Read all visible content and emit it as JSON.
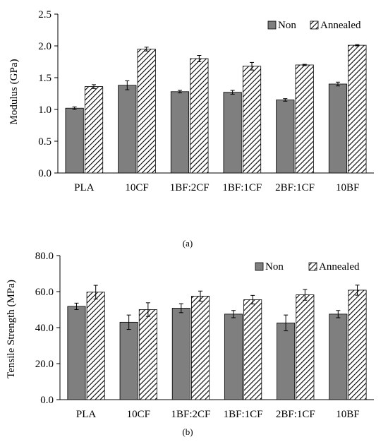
{
  "chart_data": [
    {
      "type": "bar",
      "panel_label": "(a)",
      "ylabel": "Modulus (GPa)",
      "xlabel": "",
      "ylim": [
        0,
        2.5
      ],
      "yticks": [
        "0.0",
        "0.5",
        "1.0",
        "1.5",
        "2.0",
        "2.5"
      ],
      "grid": false,
      "legend_position": "top-right",
      "categories": [
        "PLA",
        "10CF",
        "1BF:2CF",
        "1BF:1CF",
        "2BF:1CF",
        "10BF"
      ],
      "series": [
        {
          "name": "Non",
          "values": [
            1.02,
            1.38,
            1.28,
            1.27,
            1.15,
            1.4
          ],
          "errors": [
            0.02,
            0.07,
            0.02,
            0.03,
            0.02,
            0.03
          ],
          "color": "#7f7f7f",
          "pattern": "solid"
        },
        {
          "name": "Annealed",
          "values": [
            1.36,
            1.95,
            1.8,
            1.68,
            1.7,
            2.01
          ],
          "errors": [
            0.03,
            0.03,
            0.05,
            0.06,
            0.01,
            0.01
          ],
          "color": "#ffffff",
          "pattern": "hatched"
        }
      ]
    },
    {
      "type": "bar",
      "panel_label": "(b)",
      "ylabel": "Tensile Strength (MPa)",
      "xlabel": "",
      "ylim": [
        0,
        80
      ],
      "yticks": [
        "0.0",
        "20.0",
        "40.0",
        "60.0",
        "80.0"
      ],
      "grid": false,
      "legend_position": "top-right",
      "categories": [
        "PLA",
        "10CF",
        "1BF:2CF",
        "1BF:1CF",
        "2BF:1CF",
        "10BF"
      ],
      "series": [
        {
          "name": "Non",
          "values": [
            51.8,
            43.0,
            50.8,
            47.5,
            42.6,
            47.5
          ],
          "errors": [
            1.8,
            4.0,
            2.5,
            2.0,
            4.4,
            2.0
          ],
          "color": "#7f7f7f",
          "pattern": "solid"
        },
        {
          "name": "Annealed",
          "values": [
            59.7,
            50.0,
            57.5,
            55.5,
            58.2,
            60.8
          ],
          "errors": [
            3.8,
            3.8,
            2.8,
            2.4,
            3.0,
            2.8
          ],
          "color": "#ffffff",
          "pattern": "hatched"
        }
      ]
    }
  ]
}
